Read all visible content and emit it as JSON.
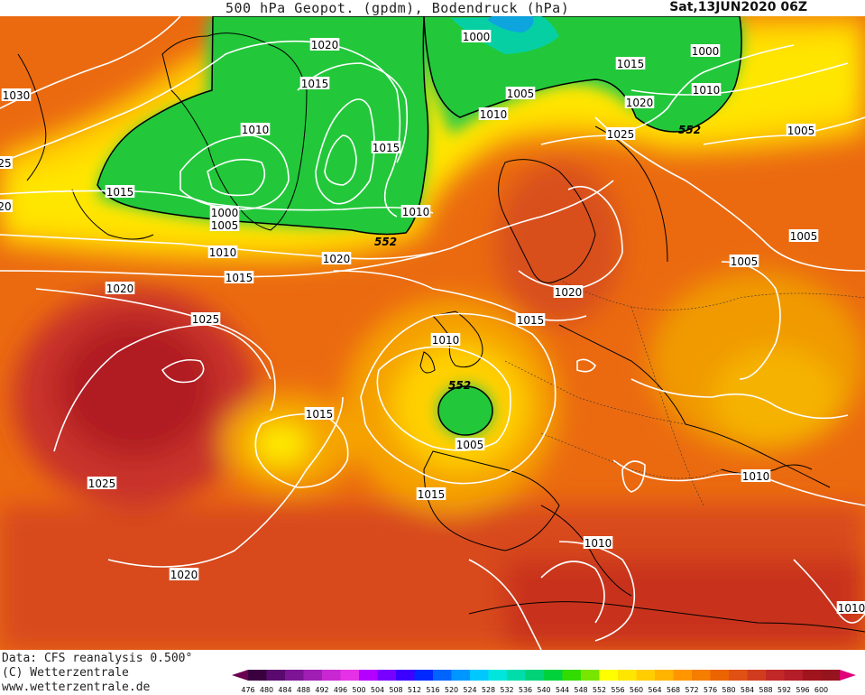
{
  "header": {
    "title": "500 hPa Geopot. (gpdm), Bodendruck (hPa)",
    "datetime": "Sat,13JUN2020 06Z"
  },
  "footer": {
    "data_source": "Data: CFS reanalysis 0.500°",
    "copyright": "(C) Wetterzentrale",
    "website": "www.wetterzentrale.de"
  },
  "legend": {
    "values": [
      476,
      480,
      484,
      488,
      492,
      496,
      500,
      504,
      508,
      512,
      516,
      520,
      524,
      528,
      532,
      536,
      540,
      544,
      548,
      552,
      556,
      560,
      564,
      568,
      572,
      576,
      580,
      584,
      588,
      592,
      596,
      600
    ],
    "colors": [
      "#3a0040",
      "#5a0a6e",
      "#7d1496",
      "#a01eb4",
      "#c828d2",
      "#e632e6",
      "#b400ff",
      "#7800ff",
      "#3c00ff",
      "#0028ff",
      "#0064ff",
      "#0096ff",
      "#00c8ff",
      "#00e6dc",
      "#00dcaa",
      "#00d278",
      "#00d23c",
      "#32dc00",
      "#78e600",
      "#ffff00",
      "#ffe600",
      "#ffcd00",
      "#ffb400",
      "#ff9600",
      "#f57d00",
      "#eb6400",
      "#e15014",
      "#d23c1e",
      "#c32828",
      "#b41e28",
      "#a0141e",
      "#96141e"
    ],
    "arrow_left": "#6a0050",
    "arrow_right": "#e0007a"
  },
  "map": {
    "contour_552": "552",
    "pressure_labels": [
      {
        "text": "1020"
      },
      {
        "text": "1000"
      },
      {
        "text": "1015"
      },
      {
        "text": "1000"
      },
      {
        "text": "1015"
      },
      {
        "text": "1005"
      },
      {
        "text": "1010"
      },
      {
        "text": "1010"
      },
      {
        "text": "1030"
      },
      {
        "text": "1010"
      },
      {
        "text": "1015"
      },
      {
        "text": "1025"
      },
      {
        "text": "1005"
      },
      {
        "text": "1020"
      },
      {
        "text": "1015"
      },
      {
        "text": "1000"
      },
      {
        "text": "1005"
      },
      {
        "text": "1010"
      },
      {
        "text": "1010"
      },
      {
        "text": "1020"
      },
      {
        "text": "1015"
      },
      {
        "text": "1020"
      },
      {
        "text": "1025"
      },
      {
        "text": "1005"
      },
      {
        "text": "1005"
      },
      {
        "text": "1020"
      },
      {
        "text": "1015"
      },
      {
        "text": "1010"
      },
      {
        "text": "1005"
      },
      {
        "text": "1015"
      },
      {
        "text": "1025"
      },
      {
        "text": "1015"
      },
      {
        "text": "1010"
      },
      {
        "text": "1020"
      },
      {
        "text": "1010"
      },
      {
        "text": "1010"
      },
      {
        "text": "25"
      },
      {
        "text": "20"
      }
    ]
  }
}
